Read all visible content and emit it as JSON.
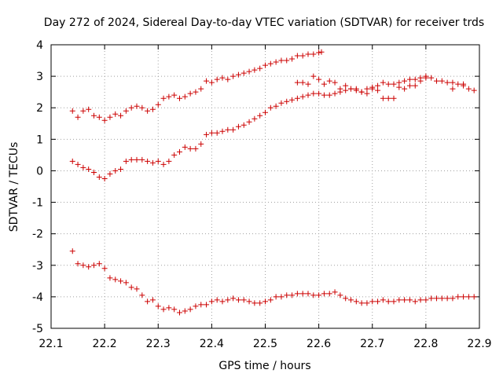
{
  "chart_data": {
    "type": "scatter",
    "title": "Day 272 of 2024, Sidereal Day-to-day VTEC variation (SDTVAR) for receiver trds",
    "xlabel": "GPS time / hours",
    "ylabel": "SDTVAR / TECUs",
    "xlim": [
      22.1,
      22.9
    ],
    "ylim": [
      -5,
      4
    ],
    "x_ticks": [
      "22.1",
      "22.2",
      "22.3",
      "22.4",
      "22.5",
      "22.6",
      "22.7",
      "22.8",
      "22.9"
    ],
    "y_ticks": [
      "-5",
      "-4",
      "-3",
      "-2",
      "-1",
      "0",
      "1",
      "2",
      "3",
      "4"
    ],
    "grid": true,
    "marker": "+",
    "marker_color": "#cc0000",
    "series": [
      {
        "name": "series-upper",
        "x": [
          22.14,
          22.15,
          22.16,
          22.17,
          22.18,
          22.19,
          22.2,
          22.21,
          22.22,
          22.23,
          22.24,
          22.25,
          22.26,
          22.27,
          22.28,
          22.29,
          22.3,
          22.31,
          22.32,
          22.33,
          22.34,
          22.35,
          22.36,
          22.37,
          22.38,
          22.39,
          22.4,
          22.41,
          22.42,
          22.43,
          22.44,
          22.45,
          22.46,
          22.47,
          22.48,
          22.49,
          22.5,
          22.51,
          22.52,
          22.53,
          22.54,
          22.55,
          22.56,
          22.57,
          22.58,
          22.59,
          22.6,
          22.605
        ],
        "y": [
          1.9,
          1.7,
          1.9,
          1.95,
          1.75,
          1.7,
          1.6,
          1.7,
          1.8,
          1.75,
          1.9,
          2.0,
          2.05,
          2.0,
          1.9,
          1.95,
          2.1,
          2.3,
          2.35,
          2.4,
          2.3,
          2.35,
          2.45,
          2.5,
          2.6,
          2.85,
          2.8,
          2.9,
          2.95,
          2.9,
          3.0,
          3.05,
          3.1,
          3.15,
          3.2,
          3.25,
          3.35,
          3.4,
          3.45,
          3.5,
          3.5,
          3.55,
          3.65,
          3.65,
          3.7,
          3.7,
          3.75,
          3.77
        ]
      },
      {
        "name": "series-middle",
        "x": [
          22.14,
          22.15,
          22.16,
          22.17,
          22.18,
          22.19,
          22.2,
          22.21,
          22.22,
          22.23,
          22.24,
          22.25,
          22.26,
          22.27,
          22.28,
          22.29,
          22.3,
          22.31,
          22.32,
          22.33,
          22.34,
          22.35,
          22.36,
          22.37,
          22.38,
          22.39,
          22.4,
          22.41,
          22.42,
          22.43,
          22.44,
          22.45,
          22.46,
          22.47,
          22.48,
          22.49,
          22.5,
          22.51,
          22.52,
          22.53,
          22.54,
          22.55,
          22.56,
          22.57,
          22.58,
          22.59,
          22.6,
          22.61,
          22.62,
          22.63,
          22.64,
          22.65,
          22.66,
          22.67,
          22.68,
          22.69,
          22.7,
          22.71,
          22.72,
          22.73,
          22.74,
          22.75,
          22.76,
          22.77,
          22.78,
          22.79,
          22.8,
          22.81,
          22.82,
          22.83,
          22.84,
          22.85,
          22.86,
          22.87,
          22.88,
          22.89
        ],
        "y": [
          0.3,
          0.2,
          0.1,
          0.05,
          -0.05,
          -0.2,
          -0.25,
          -0.1,
          0.0,
          0.05,
          0.3,
          0.35,
          0.35,
          0.35,
          0.3,
          0.25,
          0.3,
          0.2,
          0.3,
          0.5,
          0.6,
          0.75,
          0.7,
          0.7,
          0.85,
          1.15,
          1.2,
          1.2,
          1.25,
          1.3,
          1.3,
          1.4,
          1.45,
          1.55,
          1.65,
          1.75,
          1.85,
          2.0,
          2.05,
          2.15,
          2.2,
          2.25,
          2.3,
          2.35,
          2.4,
          2.45,
          2.45,
          2.4,
          2.4,
          2.45,
          2.5,
          2.55,
          2.6,
          2.55,
          2.5,
          2.6,
          2.65,
          2.7,
          2.8,
          2.75,
          2.75,
          2.8,
          2.85,
          2.9,
          2.9,
          2.95,
          3.0,
          2.95,
          2.85,
          2.85,
          2.8,
          2.8,
          2.75,
          2.7,
          2.6,
          2.55
        ]
      },
      {
        "name": "series-scatter-top",
        "x": [
          22.56,
          22.57,
          22.58,
          22.59,
          22.6,
          22.61,
          22.62,
          22.63,
          22.64,
          22.65,
          22.66,
          22.67,
          22.68,
          22.69,
          22.7,
          22.71,
          22.72,
          22.73,
          22.74,
          22.75,
          22.76,
          22.77,
          22.78,
          22.79,
          22.8,
          22.85,
          22.87
        ],
        "y": [
          2.8,
          2.8,
          2.75,
          3.0,
          2.9,
          2.75,
          2.85,
          2.8,
          2.6,
          2.7,
          2.6,
          2.6,
          2.5,
          2.45,
          2.6,
          2.55,
          2.3,
          2.3,
          2.3,
          2.65,
          2.6,
          2.7,
          2.7,
          2.85,
          2.95,
          2.6,
          2.75
        ]
      },
      {
        "name": "series-lower",
        "x": [
          22.14,
          22.15,
          22.16,
          22.17,
          22.18,
          22.19,
          22.2,
          22.21,
          22.22,
          22.23,
          22.24,
          22.25,
          22.26,
          22.27,
          22.28,
          22.29,
          22.3,
          22.31,
          22.32,
          22.33,
          22.34,
          22.35,
          22.36,
          22.37,
          22.38,
          22.39,
          22.4,
          22.41,
          22.42,
          22.43,
          22.44,
          22.45,
          22.46,
          22.47,
          22.48,
          22.49,
          22.5,
          22.51,
          22.52,
          22.53,
          22.54,
          22.55,
          22.56,
          22.57,
          22.58,
          22.59,
          22.6,
          22.61,
          22.62,
          22.63,
          22.64,
          22.65,
          22.66,
          22.67,
          22.68,
          22.69,
          22.7,
          22.71,
          22.72,
          22.73,
          22.74,
          22.75,
          22.76,
          22.77,
          22.78,
          22.79,
          22.8,
          22.81,
          22.82,
          22.83,
          22.84,
          22.85,
          22.86,
          22.87,
          22.88,
          22.89
        ],
        "y": [
          -2.55,
          -2.95,
          -3.0,
          -3.05,
          -3.0,
          -2.95,
          -3.1,
          -3.4,
          -3.45,
          -3.5,
          -3.55,
          -3.7,
          -3.75,
          -3.95,
          -4.15,
          -4.1,
          -4.3,
          -4.4,
          -4.35,
          -4.4,
          -4.5,
          -4.45,
          -4.4,
          -4.3,
          -4.25,
          -4.25,
          -4.15,
          -4.1,
          -4.15,
          -4.1,
          -4.05,
          -4.1,
          -4.1,
          -4.15,
          -4.2,
          -4.2,
          -4.15,
          -4.1,
          -4.0,
          -4.0,
          -3.95,
          -3.95,
          -3.9,
          -3.9,
          -3.9,
          -3.95,
          -3.95,
          -3.9,
          -3.9,
          -3.85,
          -3.95,
          -4.05,
          -4.1,
          -4.15,
          -4.2,
          -4.2,
          -4.15,
          -4.15,
          -4.1,
          -4.15,
          -4.15,
          -4.1,
          -4.1,
          -4.1,
          -4.15,
          -4.1,
          -4.1,
          -4.05,
          -4.05,
          -4.05,
          -4.05,
          -4.05,
          -4.0,
          -4.0,
          -4.0,
          -4.0
        ]
      }
    ]
  }
}
